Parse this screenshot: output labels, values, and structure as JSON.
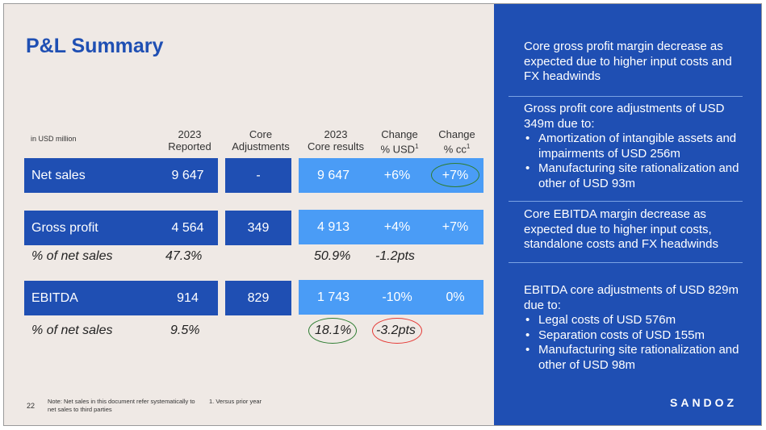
{
  "title": "P&L Summary",
  "units": "in USD million",
  "headers": {
    "reported": [
      "2023",
      "Reported"
    ],
    "core_adj": [
      "Core",
      "Adjustments"
    ],
    "core_results": [
      "2023",
      "Core results"
    ],
    "chg_usd": [
      "Change",
      "% USD",
      "1"
    ],
    "chg_cc": [
      "Change",
      "% cc",
      "1"
    ]
  },
  "rows": {
    "net_sales": {
      "label": "Net sales",
      "reported": "9 647",
      "adj": "-",
      "core": "9 647",
      "usd": "+6%",
      "cc": "+7%"
    },
    "gross_profit": {
      "label": "Gross profit",
      "reported": "4 564",
      "adj": "349",
      "core": "4 913",
      "usd": "+4%",
      "cc": "+7%"
    },
    "gp_pct": {
      "label": "% of net sales",
      "reported": "47.3%",
      "core": "50.9%",
      "usd": "-1.2pts"
    },
    "ebitda": {
      "label": "EBITDA",
      "reported": "914",
      "adj": "829",
      "core": "1 743",
      "usd": "-10%",
      "cc": "0%"
    },
    "eb_pct": {
      "label": "% of net sales",
      "reported": "9.5%",
      "core": "18.1%",
      "usd": "-3.2pts"
    }
  },
  "page_number": "22",
  "note": "Note: Net sales in this document refer systematically to net sales to third parties",
  "footnote": "1. Versus prior year",
  "right_panel": {
    "block1": "Core gross profit margin decrease as expected due to higher input costs and FX headwinds",
    "block2_intro": "Gross profit core adjustments of USD 349m due to:",
    "block2_items": [
      "Amortization of intangible assets and impairments of USD 256m",
      "Manufacturing site rationalization and other of USD 93m"
    ],
    "block3": "Core EBITDA margin decrease as expected due to higher input costs, standalone costs and FX headwinds",
    "block4_intro": "EBITDA core adjustments of USD 829m due to:",
    "block4_items": [
      "Legal costs of USD 576m",
      "Separation costs of USD 155m",
      "Manufacturing site rationalization and other of USD 98m"
    ]
  },
  "logo": "SANDOZ",
  "colors": {
    "dark_blue": "#1f4fb3",
    "light_blue": "#4a9cf6",
    "background": "#efe9e5",
    "green_circle": "#2e7d32",
    "red_circle": "#e53935"
  }
}
